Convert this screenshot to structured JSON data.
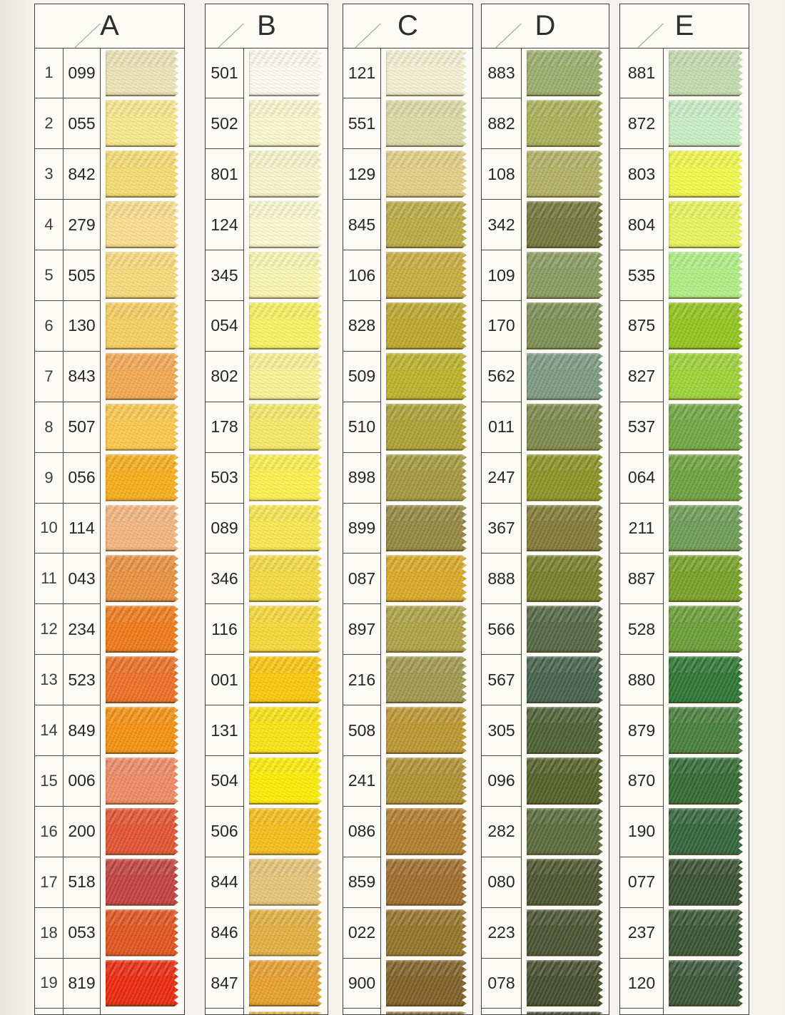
{
  "page": {
    "background": "#f4f3ed",
    "card_background": "#fbfaf5",
    "grid_color": "#4a4a46",
    "text_color": "#262626"
  },
  "columns": [
    {
      "letter": "A",
      "partial_color": null,
      "rows": [
        {
          "num": "1",
          "code": "099",
          "color": "#ECE3B6"
        },
        {
          "num": "2",
          "code": "055",
          "color": "#F8E88C"
        },
        {
          "num": "3",
          "code": "842",
          "color": "#F5DC72"
        },
        {
          "num": "4",
          "code": "279",
          "color": "#F8DE8D"
        },
        {
          "num": "5",
          "code": "505",
          "color": "#F8DA7C"
        },
        {
          "num": "6",
          "code": "130",
          "color": "#F6CE5F"
        },
        {
          "num": "7",
          "code": "843",
          "color": "#F3A952"
        },
        {
          "num": "8",
          "code": "507",
          "color": "#F9C74C"
        },
        {
          "num": "9",
          "code": "056",
          "color": "#F8AE1B"
        },
        {
          "num": "10",
          "code": "114",
          "color": "#F2B67E"
        },
        {
          "num": "11",
          "code": "043",
          "color": "#E8913F"
        },
        {
          "num": "12",
          "code": "234",
          "color": "#EF7A1A"
        },
        {
          "num": "13",
          "code": "523",
          "color": "#EC6F26"
        },
        {
          "num": "14",
          "code": "849",
          "color": "#F59110"
        },
        {
          "num": "15",
          "code": "006",
          "color": "#EE8A66"
        },
        {
          "num": "16",
          "code": "200",
          "color": "#E25431"
        },
        {
          "num": "17",
          "code": "518",
          "color": "#C24140"
        },
        {
          "num": "18",
          "code": "053",
          "color": "#E0541E"
        },
        {
          "num": "19",
          "code": "819",
          "color": "#EA2A0D"
        }
      ]
    },
    {
      "letter": "B",
      "partial_color": "#E2A83E",
      "rows": [
        {
          "num": null,
          "code": "501",
          "color": "#FBFAF2"
        },
        {
          "num": null,
          "code": "502",
          "color": "#FAF7CE"
        },
        {
          "num": null,
          "code": "801",
          "color": "#F7F4CB"
        },
        {
          "num": null,
          "code": "124",
          "color": "#FAF9D2"
        },
        {
          "num": null,
          "code": "345",
          "color": "#F9F6B1"
        },
        {
          "num": null,
          "code": "054",
          "color": "#F8F161"
        },
        {
          "num": null,
          "code": "802",
          "color": "#F8F294"
        },
        {
          "num": null,
          "code": "178",
          "color": "#F5E967"
        },
        {
          "num": null,
          "code": "503",
          "color": "#FAF04E"
        },
        {
          "num": null,
          "code": "089",
          "color": "#F8E750"
        },
        {
          "num": null,
          "code": "346",
          "color": "#F5DB42"
        },
        {
          "num": null,
          "code": "116",
          "color": "#F6D839"
        },
        {
          "num": null,
          "code": "001",
          "color": "#F9C70D"
        },
        {
          "num": null,
          "code": "131",
          "color": "#FAE314"
        },
        {
          "num": null,
          "code": "504",
          "color": "#FCEC07"
        },
        {
          "num": null,
          "code": "506",
          "color": "#F6BE1A"
        },
        {
          "num": null,
          "code": "844",
          "color": "#E5C477"
        },
        {
          "num": null,
          "code": "846",
          "color": "#E2B041"
        },
        {
          "num": null,
          "code": "847",
          "color": "#E79F2D"
        }
      ]
    },
    {
      "letter": "C",
      "partial_color": "#8A6A2C",
      "rows": [
        {
          "num": null,
          "code": "121",
          "color": "#F2EFD1"
        },
        {
          "num": null,
          "code": "551",
          "color": "#DED8A5"
        },
        {
          "num": null,
          "code": "129",
          "color": "#E2CE85"
        },
        {
          "num": null,
          "code": "845",
          "color": "#BBAB45"
        },
        {
          "num": null,
          "code": "106",
          "color": "#C8AC3F"
        },
        {
          "num": null,
          "code": "828",
          "color": "#BCA72E"
        },
        {
          "num": null,
          "code": "509",
          "color": "#BCB22B"
        },
        {
          "num": null,
          "code": "510",
          "color": "#ACA135"
        },
        {
          "num": null,
          "code": "898",
          "color": "#A4983F"
        },
        {
          "num": null,
          "code": "899",
          "color": "#958741"
        },
        {
          "num": null,
          "code": "087",
          "color": "#D8A827"
        },
        {
          "num": null,
          "code": "897",
          "color": "#ADA246"
        },
        {
          "num": null,
          "code": "216",
          "color": "#A0984E"
        },
        {
          "num": null,
          "code": "508",
          "color": "#BC9730"
        },
        {
          "num": null,
          "code": "241",
          "color": "#B09133"
        },
        {
          "num": null,
          "code": "086",
          "color": "#B27D2C"
        },
        {
          "num": null,
          "code": "859",
          "color": "#A06C2E"
        },
        {
          "num": null,
          "code": "022",
          "color": "#94742A"
        },
        {
          "num": null,
          "code": "900",
          "color": "#7F6128"
        }
      ]
    },
    {
      "letter": "D",
      "partial_color": "#40492A",
      "rows": [
        {
          "num": null,
          "code": "883",
          "color": "#9BAD6C"
        },
        {
          "num": null,
          "code": "882",
          "color": "#A9B158"
        },
        {
          "num": null,
          "code": "108",
          "color": "#B2B064"
        },
        {
          "num": null,
          "code": "342",
          "color": "#72773B"
        },
        {
          "num": null,
          "code": "109",
          "color": "#8A9B60"
        },
        {
          "num": null,
          "code": "170",
          "color": "#7D8F55"
        },
        {
          "num": null,
          "code": "562",
          "color": "#7D9A81"
        },
        {
          "num": null,
          "code": "011",
          "color": "#7D894B"
        },
        {
          "num": null,
          "code": "247",
          "color": "#8A9326"
        },
        {
          "num": null,
          "code": "367",
          "color": "#827A36"
        },
        {
          "num": null,
          "code": "888",
          "color": "#767F2B"
        },
        {
          "num": null,
          "code": "566",
          "color": "#556743"
        },
        {
          "num": null,
          "code": "567",
          "color": "#46624B"
        },
        {
          "num": null,
          "code": "305",
          "color": "#4E6134"
        },
        {
          "num": null,
          "code": "096",
          "color": "#546128"
        },
        {
          "num": null,
          "code": "282",
          "color": "#5B6A3C"
        },
        {
          "num": null,
          "code": "080",
          "color": "#4C5530"
        },
        {
          "num": null,
          "code": "223",
          "color": "#4A5331"
        },
        {
          "num": null,
          "code": "078",
          "color": "#454E2D"
        }
      ]
    },
    {
      "letter": "E",
      "partial_color": null,
      "rows": [
        {
          "num": null,
          "code": "881",
          "color": "#C3DBB0"
        },
        {
          "num": null,
          "code": "872",
          "color": "#C8EEC3"
        },
        {
          "num": null,
          "code": "803",
          "color": "#F0F84B"
        },
        {
          "num": null,
          "code": "804",
          "color": "#E8F45D"
        },
        {
          "num": null,
          "code": "535",
          "color": "#B0EE85"
        },
        {
          "num": null,
          "code": "875",
          "color": "#92C41D"
        },
        {
          "num": null,
          "code": "827",
          "color": "#9CD237"
        },
        {
          "num": null,
          "code": "537",
          "color": "#71A743"
        },
        {
          "num": null,
          "code": "064",
          "color": "#6EA23F"
        },
        {
          "num": null,
          "code": "211",
          "color": "#6E9C56"
        },
        {
          "num": null,
          "code": "887",
          "color": "#77A128"
        },
        {
          "num": null,
          "code": "528",
          "color": "#6B9E39"
        },
        {
          "num": null,
          "code": "880",
          "color": "#2E7634"
        },
        {
          "num": null,
          "code": "879",
          "color": "#497E3D"
        },
        {
          "num": null,
          "code": "870",
          "color": "#346A33"
        },
        {
          "num": null,
          "code": "190",
          "color": "#346539"
        },
        {
          "num": null,
          "code": "077",
          "color": "#395130"
        },
        {
          "num": null,
          "code": "237",
          "color": "#395533"
        },
        {
          "num": null,
          "code": "120",
          "color": "#3A5636"
        }
      ]
    }
  ]
}
